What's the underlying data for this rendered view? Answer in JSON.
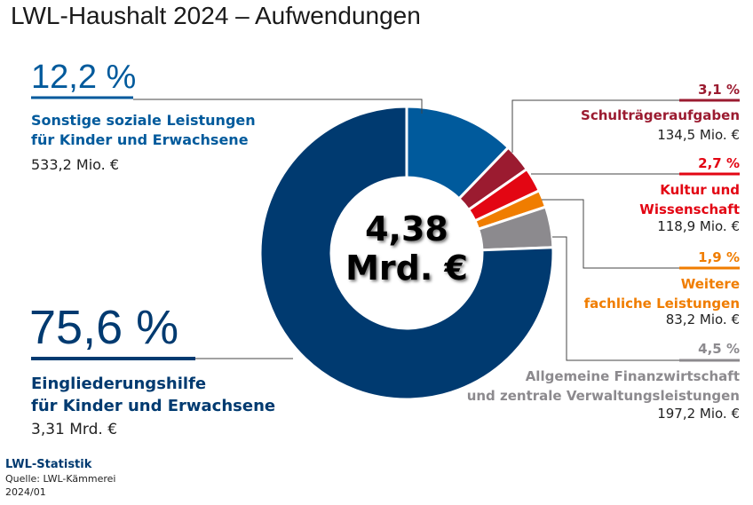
{
  "title": "LWL-Haushalt 2024 – Aufwendungen",
  "center": {
    "line1": "4,38",
    "line2": "Mrd. €"
  },
  "footer": {
    "org": "LWL-Statistik",
    "source": "Quelle:  LWL-Kämmerei",
    "date": "2024/01"
  },
  "chart_data": {
    "type": "pie",
    "donut": true,
    "title": "LWL-Haushalt 2024 – Aufwendungen",
    "total_label": "4,38 Mrd. €",
    "slices": [
      {
        "pct_label": "12,2 %",
        "value": 12.2,
        "label": [
          "Sonstige soziale Leistungen",
          "für Kinder und Erwachsene"
        ],
        "amount": "533,2 Mio. €",
        "color": "#005a9c"
      },
      {
        "pct_label": "3,1 %",
        "value": 3.1,
        "label": [
          "Schulträgeraufgaben"
        ],
        "amount": "134,5 Mio. €",
        "color": "#9b1b30"
      },
      {
        "pct_label": "2,7 %",
        "value": 2.7,
        "label": [
          "Kultur und",
          "Wissenschaft"
        ],
        "amount": "118,9 Mio. €",
        "color": "#e30613"
      },
      {
        "pct_label": "1,9 %",
        "value": 1.9,
        "label": [
          "Weitere",
          "fachliche Leistungen"
        ],
        "amount": "83,2 Mio. €",
        "color": "#f07d00"
      },
      {
        "pct_label": "4,5 %",
        "value": 4.5,
        "label": [
          "Allgemeine Finanzwirtschaft",
          "und zentrale Verwaltungsleistungen"
        ],
        "amount": "197,2 Mio. €",
        "color": "#8c8a8e"
      },
      {
        "pct_label": "75,6 %",
        "value": 75.6,
        "label": [
          "Eingliederungshilfe",
          "für Kinder und Erwachsene"
        ],
        "amount": "3,31 Mrd. €",
        "color": "#003a70"
      }
    ]
  }
}
